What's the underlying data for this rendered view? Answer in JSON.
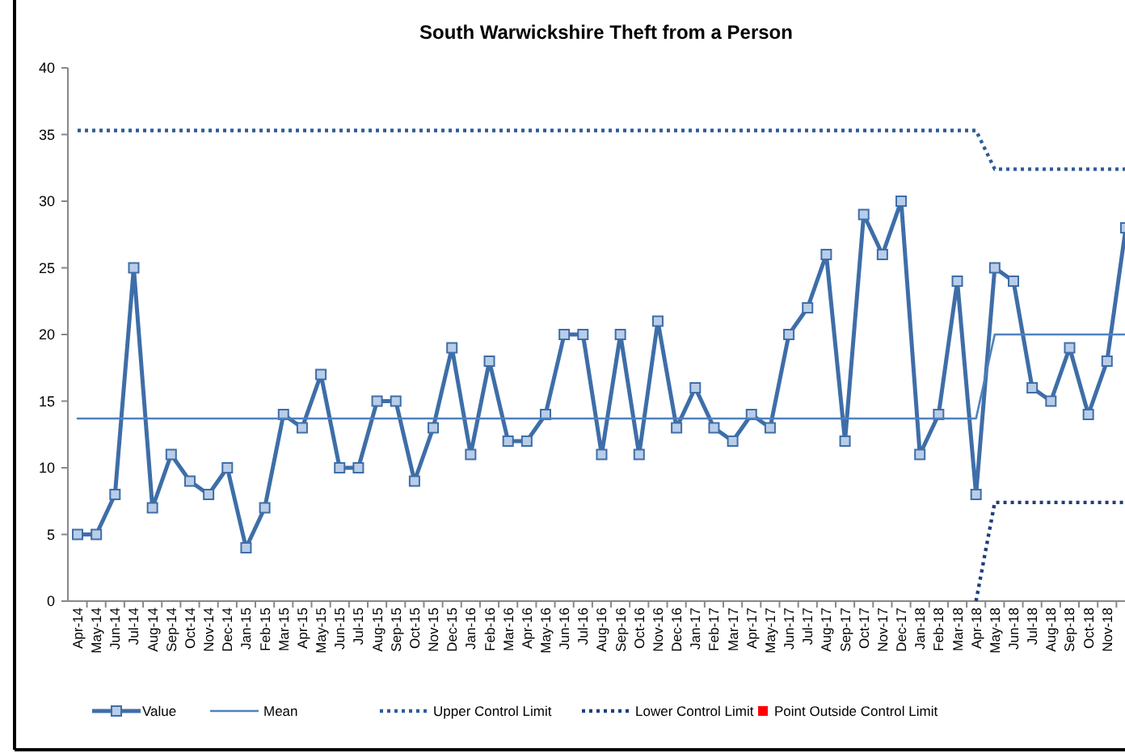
{
  "chart_data": {
    "type": "line",
    "title": "South Warwickshire Theft from a Person",
    "categories": [
      "Apr-14",
      "May-14",
      "Jun-14",
      "Jul-14",
      "Aug-14",
      "Sep-14",
      "Oct-14",
      "Nov-14",
      "Dec-14",
      "Jan-15",
      "Feb-15",
      "Mar-15",
      "Apr-15",
      "May-15",
      "Jun-15",
      "Jul-15",
      "Aug-15",
      "Sep-15",
      "Oct-15",
      "Nov-15",
      "Dec-15",
      "Jan-16",
      "Feb-16",
      "Mar-16",
      "Apr-16",
      "May-16",
      "Jun-16",
      "Jul-16",
      "Aug-16",
      "Sep-16",
      "Oct-16",
      "Nov-16",
      "Dec-16",
      "Jan-17",
      "Feb-17",
      "Mar-17",
      "Apr-17",
      "May-17",
      "Jun-17",
      "Jul-17",
      "Aug-17",
      "Sep-17",
      "Oct-17",
      "Nov-17",
      "Dec-17",
      "Jan-18",
      "Feb-18",
      "Mar-18",
      "Apr-18",
      "May-18",
      "Jun-18",
      "Jul-18",
      "Aug-18",
      "Sep-18",
      "Oct-18",
      "Nov-18",
      null
    ],
    "series": [
      {
        "name": "Value",
        "color": "#3e6ea8",
        "marker": "square",
        "line_style": "solid",
        "values": [
          5,
          5,
          8,
          25,
          7,
          11,
          9,
          8,
          10,
          4,
          7,
          14,
          13,
          17,
          10,
          10,
          15,
          15,
          9,
          13,
          19,
          11,
          18,
          12,
          12,
          14,
          20,
          20,
          11,
          20,
          11,
          21,
          13,
          16,
          13,
          12,
          14,
          13,
          20,
          22,
          26,
          12,
          29,
          26,
          30,
          11,
          14,
          24,
          8,
          25,
          24,
          16,
          15,
          19,
          14,
          18,
          28
        ]
      },
      {
        "name": "Mean",
        "color": "#4f81bd",
        "marker": "none",
        "line_style": "solid",
        "values": [
          13.7,
          13.7,
          13.7,
          13.7,
          13.7,
          13.7,
          13.7,
          13.7,
          13.7,
          13.7,
          13.7,
          13.7,
          13.7,
          13.7,
          13.7,
          13.7,
          13.7,
          13.7,
          13.7,
          13.7,
          13.7,
          13.7,
          13.7,
          13.7,
          13.7,
          13.7,
          13.7,
          13.7,
          13.7,
          13.7,
          13.7,
          13.7,
          13.7,
          13.7,
          13.7,
          13.7,
          13.7,
          13.7,
          13.7,
          13.7,
          13.7,
          13.7,
          13.7,
          13.7,
          13.7,
          13.7,
          13.7,
          13.7,
          13.7,
          20,
          20,
          20,
          20,
          20,
          20,
          20,
          20
        ]
      },
      {
        "name": "Upper Control Limit",
        "color": "#2e5b9a",
        "marker": "none",
        "line_style": "dotted",
        "values": [
          35.3,
          35.3,
          35.3,
          35.3,
          35.3,
          35.3,
          35.3,
          35.3,
          35.3,
          35.3,
          35.3,
          35.3,
          35.3,
          35.3,
          35.3,
          35.3,
          35.3,
          35.3,
          35.3,
          35.3,
          35.3,
          35.3,
          35.3,
          35.3,
          35.3,
          35.3,
          35.3,
          35.3,
          35.3,
          35.3,
          35.3,
          35.3,
          35.3,
          35.3,
          35.3,
          35.3,
          35.3,
          35.3,
          35.3,
          35.3,
          35.3,
          35.3,
          35.3,
          35.3,
          35.3,
          35.3,
          35.3,
          35.3,
          35.3,
          32.4,
          32.4,
          32.4,
          32.4,
          32.4,
          32.4,
          32.4,
          32.4
        ]
      },
      {
        "name": "Lower Control Limit",
        "color": "#1f3f7a",
        "marker": "none",
        "line_style": "dotted",
        "values": [
          null,
          null,
          null,
          null,
          null,
          null,
          null,
          null,
          null,
          null,
          null,
          null,
          null,
          null,
          null,
          null,
          null,
          null,
          null,
          null,
          null,
          null,
          null,
          null,
          null,
          null,
          null,
          null,
          null,
          null,
          null,
          null,
          null,
          null,
          null,
          null,
          null,
          null,
          null,
          null,
          null,
          null,
          null,
          null,
          null,
          null,
          null,
          null,
          0,
          7.4,
          7.4,
          7.4,
          7.4,
          7.4,
          7.4,
          7.4,
          7.4
        ]
      },
      {
        "name": "Point Outside Control Limit",
        "type": "scatter",
        "color": "#ff0000",
        "marker": "square",
        "values": [
          null,
          null,
          null,
          null,
          null,
          null,
          null,
          null,
          null,
          null,
          null,
          null,
          null,
          null,
          null,
          null,
          null,
          null,
          null,
          null,
          null,
          null,
          null,
          null,
          null,
          null,
          null,
          null,
          null,
          null,
          null,
          null,
          null,
          null,
          null,
          null,
          null,
          null,
          null,
          null,
          null,
          null,
          null,
          null,
          null,
          null,
          null,
          null,
          null,
          null,
          null,
          null,
          null,
          null,
          null,
          null,
          null
        ]
      }
    ],
    "ylim": [
      0,
      40
    ],
    "yticks": [
      0,
      5,
      10,
      15,
      20,
      25,
      30,
      35,
      40
    ],
    "legend": "bottom"
  }
}
